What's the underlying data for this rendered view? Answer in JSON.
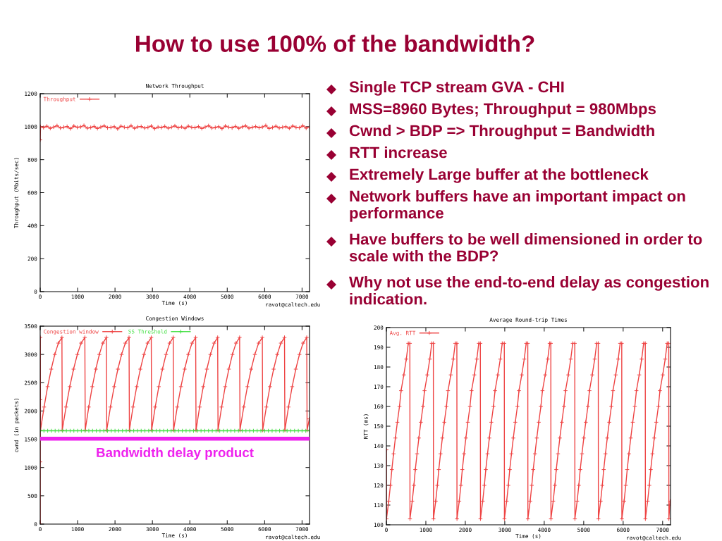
{
  "chart_data": [
    {
      "type": "other",
      "title": "How to use 100% of the bandwidth?",
      "annotations": [
        "Single TCP stream GVA - CHI",
        "MSS=8960 Bytes; Throughput = 980Mbps",
        "Cwnd > BDP => Throughput = Bandwidth",
        "RTT increase",
        "Extremely Large buffer at the bottleneck",
        "Network buffers have an important impact on performance",
        "Have buffers to be well dimensioned in order to scale with the BDP?",
        "Why not use the end-to-end delay as congestion indication."
      ]
    },
    {
      "type": "line",
      "title": "Network Throughput",
      "xlabel": "Time (s)",
      "ylabel": "Throughput (Mbits/sec)",
      "annotations": [
        "ravot@caltech.edu"
      ],
      "legend": "top left",
      "marker": "cross",
      "line_style": "solid",
      "x": [
        0,
        10,
        90,
        180,
        270,
        360,
        450,
        540,
        630,
        720,
        810,
        900,
        990,
        1080,
        1170,
        1260,
        1350,
        1440,
        1530,
        1620,
        1710,
        1800,
        1890,
        1980,
        2070,
        2160,
        2250,
        2340,
        2430,
        2520,
        2610,
        2700,
        2790,
        2880,
        2970,
        3060,
        3150,
        3240,
        3330,
        3420,
        3510,
        3600,
        3690,
        3780,
        3870,
        3960,
        4050,
        4140,
        4230,
        4320,
        4410,
        4500,
        4590,
        4680,
        4770,
        4860,
        4950,
        5040,
        5130,
        5220,
        5310,
        5400,
        5490,
        5580,
        5670,
        5760,
        5850,
        5940,
        6030,
        6120,
        6210,
        6300,
        6390,
        6480,
        6570,
        6660,
        6750,
        6840,
        6930,
        7020,
        7110,
        7200
      ],
      "series": [
        {
          "name": "Throughput",
          "color": "#ee4444",
          "values": [
            920,
            1000,
            995,
            1003,
            990,
            998,
            1006,
            992,
            997,
            1001,
            988,
            1004,
            996,
            999,
            1007,
            991,
            995,
            1002,
            989,
            998,
            1005,
            993,
            996,
            1000,
            987,
            1003,
            997,
            994,
            1006,
            990,
            999,
            1001,
            992,
            996,
            1004,
            988,
            998,
            995,
            1002,
            991,
            997,
            1005,
            993,
            999,
            990,
            1003,
            996,
            994,
            1001,
            989,
            998,
            1006,
            992,
            995,
            1000,
            988,
            1004,
            997,
            993,
            1002,
            990,
            999,
            1005,
            991,
            996,
            1001,
            994,
            998,
            1007,
            989,
            995,
            1003,
            992,
            997,
            1000,
            990,
            1004,
            996,
            993,
            1006,
            991,
            998
          ]
        }
      ],
      "xlim": [
        0,
        7200
      ],
      "ylim": [
        0,
        1200
      ],
      "xticks": [
        0,
        1000,
        2000,
        3000,
        4000,
        5000,
        6000,
        7000
      ],
      "yticks": [
        0,
        200,
        400,
        600,
        800,
        1000,
        1200
      ]
    },
    {
      "type": "line",
      "title": "Congestion Windows",
      "xlabel": "Time (s)",
      "ylabel": "cwnd (in packets)",
      "annotations": [
        "ravot@caltech.edu"
      ],
      "legend": "top left",
      "marker": "cross",
      "line_style": "solid",
      "series": [
        {
          "name": "Congestion window",
          "color": "#ee4444",
          "x": [
            0,
            1,
            2,
            3,
            8,
            104,
            199,
            295,
            390,
            486,
            581,
            590,
            691,
            791,
            892,
            993,
            1093,
            1194,
            1204,
            1298,
            1392,
            1487,
            1581,
            1675,
            1769,
            1779,
            1878,
            1978,
            2077,
            2176,
            2276,
            2375,
            2385,
            2482,
            2580,
            2677,
            2774,
            2872,
            2969,
            2979,
            3075,
            3171,
            3268,
            3364,
            3460,
            3556,
            3566,
            3664,
            3763,
            3861,
            3959,
            4058,
            4156,
            4166,
            4262,
            4359,
            4455,
            4551,
            4648,
            4744,
            4754,
            4850,
            4946,
            5043,
            5139,
            5235,
            5331,
            5341,
            5441,
            5540,
            5640,
            5739,
            5839,
            5938,
            5948,
            6045,
            6142,
            6240,
            6337,
            6434,
            6531,
            6541,
            6638,
            6736,
            6833,
            6930,
            7028,
            7125,
            7135,
            7195
          ],
          "values": [
            0,
            1100,
            2200,
            3300,
            1660,
            2070,
            2430,
            2740,
            3000,
            3200,
            3300,
            1660,
            2070,
            2430,
            2740,
            3000,
            3200,
            3300,
            1660,
            2070,
            2430,
            2740,
            3000,
            3200,
            3300,
            1660,
            2070,
            2430,
            2740,
            3000,
            3200,
            3300,
            1660,
            2070,
            2430,
            2740,
            3000,
            3200,
            3300,
            1660,
            2070,
            2430,
            2740,
            3000,
            3200,
            3300,
            1660,
            2070,
            2430,
            2740,
            3000,
            3200,
            3300,
            1660,
            2070,
            2430,
            2740,
            3000,
            3200,
            3300,
            1660,
            2070,
            2430,
            2740,
            3000,
            3200,
            3300,
            1660,
            2070,
            2430,
            2740,
            3000,
            3200,
            3300,
            1660,
            2070,
            2430,
            2740,
            3000,
            3200,
            3300,
            1660,
            2070,
            2430,
            2740,
            3000,
            3200,
            3300,
            1660,
            1860
          ]
        },
        {
          "name": "SS Threshold",
          "color": "#44e044",
          "x": [
            0,
            100,
            200,
            300,
            400,
            500,
            600,
            700,
            800,
            900,
            1000,
            1100,
            1200,
            1300,
            1400,
            1500,
            1600,
            1700,
            1800,
            1900,
            2000,
            2100,
            2200,
            2300,
            2400,
            2500,
            2600,
            2700,
            2800,
            2900,
            3000,
            3100,
            3200,
            3300,
            3400,
            3500,
            3600,
            3700,
            3800,
            3900,
            4000,
            4100,
            4200,
            4300,
            4400,
            4500,
            4600,
            4700,
            4800,
            4900,
            5000,
            5100,
            5200,
            5300,
            5400,
            5500,
            5600,
            5700,
            5800,
            5900,
            6000,
            6100,
            6200,
            6300,
            6400,
            6500,
            6600,
            6700,
            6800,
            6900,
            7000,
            7100,
            7200
          ],
          "values": [
            1650,
            1650,
            1650,
            1650,
            1650,
            1650,
            1650,
            1650,
            1650,
            1650,
            1650,
            1650,
            1650,
            1650,
            1650,
            1650,
            1650,
            1650,
            1650,
            1650,
            1650,
            1650,
            1650,
            1650,
            1650,
            1650,
            1650,
            1650,
            1650,
            1650,
            1650,
            1650,
            1650,
            1650,
            1650,
            1650,
            1650,
            1650,
            1650,
            1650,
            1650,
            1650,
            1650,
            1650,
            1650,
            1650,
            1650,
            1650,
            1650,
            1650,
            1650,
            1650,
            1650,
            1650,
            1650,
            1650,
            1650,
            1650,
            1650,
            1650,
            1650,
            1650,
            1650,
            1650,
            1650,
            1650,
            1650,
            1650,
            1650,
            1650,
            1650,
            1650,
            1650
          ]
        }
      ],
      "ref_lines": [
        {
          "axis": "y",
          "value": 1510,
          "label": "Bandwidth delay product",
          "color": "#ee22ee",
          "line_style": "solid"
        }
      ],
      "xlim": [
        0,
        7200
      ],
      "ylim": [
        0,
        3500
      ],
      "xticks": [
        0,
        1000,
        2000,
        3000,
        4000,
        5000,
        6000,
        7000
      ],
      "yticks": [
        0,
        500,
        1000,
        1500,
        2000,
        2500,
        3000,
        3500
      ]
    },
    {
      "type": "line",
      "title": "Average Round-trip Times",
      "xlabel": "Time (s)",
      "ylabel": "RTT (ms)",
      "annotations": [
        "ravot@caltech.edu"
      ],
      "legend": "top left",
      "marker": "cross",
      "line_style": "solid",
      "x": [
        0,
        3,
        60,
        102,
        138,
        182,
        228,
        278,
        332,
        372,
        442,
        505,
        555,
        595,
        598,
        655,
        697,
        733,
        777,
        823,
        873,
        927,
        967,
        1037,
        1100,
        1150,
        1190,
        1193,
        1250,
        1292,
        1328,
        1372,
        1418,
        1468,
        1522,
        1562,
        1632,
        1695,
        1745,
        1786,
        1789,
        1846,
        1888,
        1924,
        1968,
        2014,
        2064,
        2118,
        2158,
        2228,
        2291,
        2341,
        2381,
        2384,
        2441,
        2483,
        2519,
        2563,
        2609,
        2659,
        2713,
        2753,
        2823,
        2886,
        2936,
        2988,
        2991,
        3048,
        3090,
        3126,
        3170,
        3216,
        3266,
        3320,
        3360,
        3430,
        3493,
        3543,
        3583,
        3586,
        3643,
        3685,
        3721,
        3765,
        3811,
        3861,
        3915,
        3955,
        4025,
        4088,
        4138,
        4167,
        4170,
        4227,
        4269,
        4305,
        4349,
        4395,
        4445,
        4499,
        4539,
        4609,
        4672,
        4722,
        4774,
        4777,
        4834,
        4876,
        4912,
        4956,
        5002,
        5052,
        5106,
        5146,
        5216,
        5279,
        5329,
        5369,
        5372,
        5429,
        5471,
        5507,
        5551,
        5597,
        5647,
        5701,
        5741,
        5811,
        5874,
        5924,
        5964,
        5967,
        6024,
        6066,
        6102,
        6146,
        6192,
        6242,
        6296,
        6336,
        6406,
        6469,
        6519,
        6560,
        6563,
        6620,
        6662,
        6698,
        6742,
        6788,
        6838,
        6892,
        6932,
        7002,
        7065,
        7115,
        7155,
        7158,
        7190
      ],
      "series": [
        {
          "name": "Avg. RTT",
          "color": "#ee4444",
          "values": [
            138,
            103,
            112,
            120,
            128,
            136,
            144,
            152,
            160,
            168,
            176,
            184,
            192,
            192,
            103,
            112,
            120,
            128,
            136,
            144,
            152,
            160,
            168,
            176,
            184,
            192,
            192,
            103,
            112,
            120,
            128,
            136,
            144,
            152,
            160,
            168,
            176,
            184,
            192,
            192,
            103,
            112,
            120,
            128,
            136,
            144,
            152,
            160,
            168,
            176,
            184,
            192,
            192,
            103,
            112,
            120,
            128,
            136,
            144,
            152,
            160,
            168,
            176,
            184,
            192,
            192,
            103,
            112,
            120,
            128,
            136,
            144,
            152,
            160,
            168,
            176,
            184,
            192,
            192,
            103,
            112,
            120,
            128,
            136,
            144,
            152,
            160,
            168,
            176,
            184,
            192,
            192,
            103,
            112,
            120,
            128,
            136,
            144,
            152,
            160,
            168,
            176,
            184,
            192,
            192,
            103,
            112,
            120,
            128,
            136,
            144,
            152,
            160,
            168,
            176,
            184,
            192,
            192,
            103,
            112,
            120,
            128,
            136,
            144,
            152,
            160,
            168,
            176,
            184,
            192,
            192,
            103,
            112,
            120,
            128,
            136,
            144,
            152,
            160,
            168,
            176,
            184,
            192,
            192,
            103,
            112,
            120,
            128,
            136,
            144,
            152,
            160,
            168,
            176,
            184,
            192,
            192,
            103,
            112
          ]
        }
      ],
      "xlim": [
        0,
        7200
      ],
      "ylim": [
        100,
        200
      ],
      "xticks": [
        0,
        1000,
        2000,
        3000,
        4000,
        5000,
        6000,
        7000
      ],
      "yticks": [
        100,
        110,
        120,
        130,
        140,
        150,
        160,
        170,
        180,
        190,
        200
      ]
    }
  ]
}
